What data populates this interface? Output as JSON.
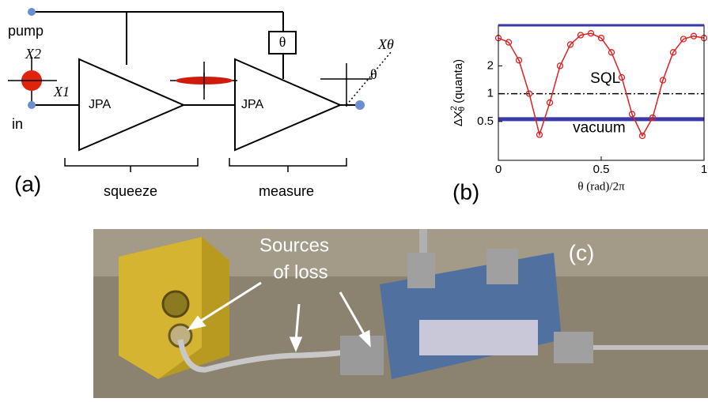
{
  "diagram": {
    "panel": "(a)",
    "pump": "pump",
    "input": "in",
    "amp1": "JPA",
    "amp2": "JPA",
    "phase_box": "θ",
    "x2": "X2",
    "x1": "X1",
    "x_theta": "Xθ",
    "angle": "θ",
    "squeeze": "squeeze",
    "measure": "measure"
  },
  "chart_data": {
    "type": "line",
    "panel": "(b)",
    "xlabel": "θ (rad)/2π",
    "ylabel": {
      "base": "ΔX",
      "sub": "θ",
      "sup": "2",
      "unit": " (quanta)"
    },
    "x": [
      0,
      0.05,
      0.1,
      0.15,
      0.2,
      0.25,
      0.3,
      0.35,
      0.4,
      0.45,
      0.5,
      0.55,
      0.6,
      0.65,
      0.7,
      0.75,
      0.8,
      0.85,
      0.9,
      0.95,
      1
    ],
    "series": [
      {
        "color": "#e02020",
        "values": [
          4.0,
          3.6,
          2.3,
          1.0,
          0.36,
          0.8,
          2.0,
          3.4,
          4.3,
          4.5,
          4.0,
          2.8,
          1.5,
          0.6,
          0.35,
          0.55,
          1.4,
          2.8,
          3.9,
          4.2,
          4.0
        ]
      }
    ],
    "hlines": [
      {
        "y": 1,
        "color": "#000000",
        "dash": "8 3 2 3"
      },
      {
        "y": 0.53,
        "color": "#3a3aa8",
        "width": 5
      }
    ],
    "annotations": [
      {
        "text": "SQL",
        "x": 0.52,
        "y": 1.45
      },
      {
        "text": "vacuum",
        "x": 0.49,
        "y": 0.42
      }
    ],
    "xlim": [
      0,
      1
    ],
    "ylim": [
      0.19,
      5.5
    ],
    "log_y": true,
    "xticks": [
      0,
      0.5,
      1
    ],
    "yticks": [
      0.5,
      1,
      2
    ]
  },
  "photo": {
    "panel": "(c)",
    "caption_line1": "Sources",
    "caption_line2": "of loss"
  }
}
